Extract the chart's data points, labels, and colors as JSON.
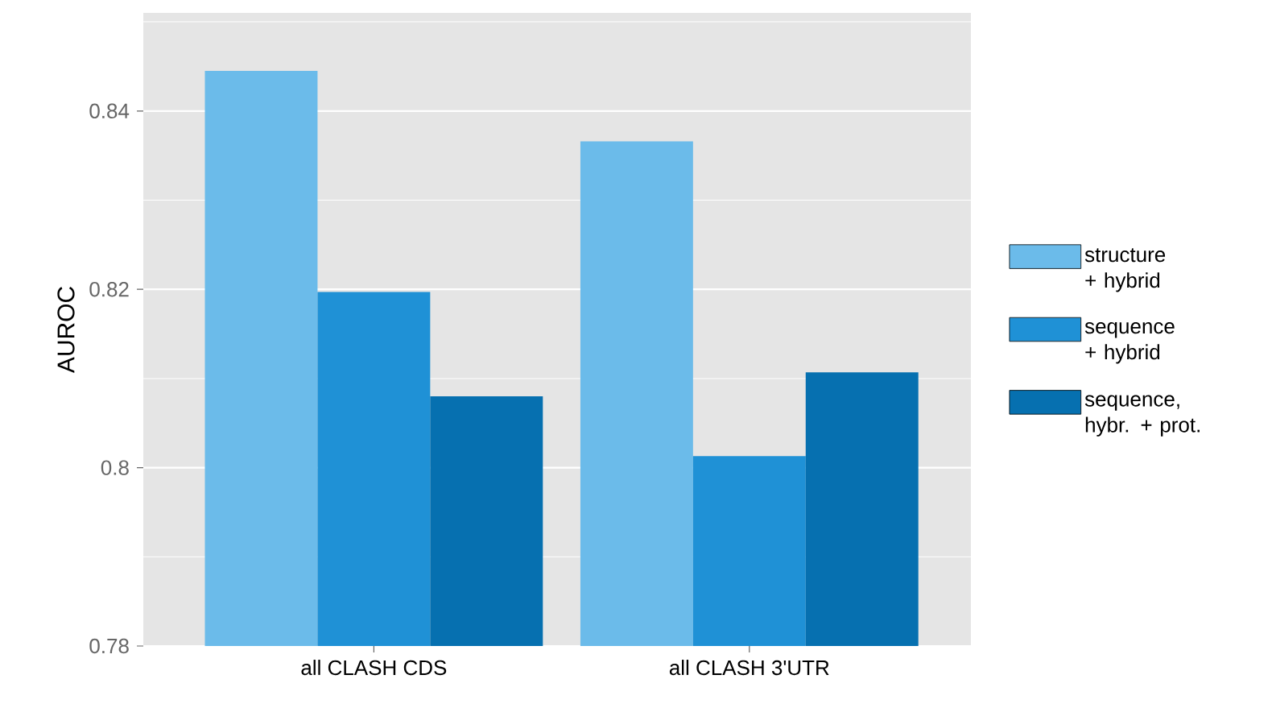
{
  "chart_data": {
    "type": "bar",
    "ylabel": "AUROC",
    "categories": [
      "all CLASH CDS",
      "all CLASH 3'UTR"
    ],
    "series": [
      {
        "name": "structure + hybrid",
        "color": "#6bbbea",
        "values": [
          0.8445,
          0.8366
        ]
      },
      {
        "name": "sequence + hybrid",
        "color": "#1f91d6",
        "values": [
          0.8197,
          0.8013
        ]
      },
      {
        "name": "sequence, hybr. + prot.",
        "color": "#0670b0",
        "values": [
          0.808,
          0.8107
        ]
      }
    ],
    "ylim": [
      0.78,
      0.851
    ],
    "yticks": [
      0.78,
      0.8,
      0.82,
      0.84
    ],
    "grid": "y",
    "legend": "right"
  }
}
